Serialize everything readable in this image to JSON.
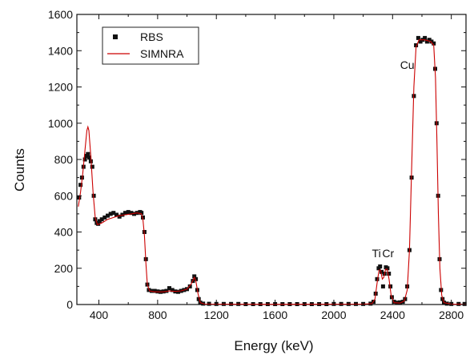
{
  "chart_data": {
    "type": "scatter",
    "xlabel": "Energy (keV)",
    "ylabel": "Counts",
    "xlim": [
      250,
      2900
    ],
    "ylim": [
      0,
      1600
    ],
    "xticks": [
      400,
      800,
      1200,
      1600,
      2000,
      2400,
      2800
    ],
    "xtick_labels": [
      "400",
      "800",
      "1200",
      "1600",
      "2000",
      "2400",
      "2800"
    ],
    "yticks": [
      0,
      200,
      400,
      600,
      800,
      1000,
      1200,
      1400,
      1600
    ],
    "ytick_labels": [
      "0",
      "200",
      "400",
      "600",
      "800",
      "1000",
      "1200",
      "1400",
      "1600"
    ],
    "grid": false,
    "legend_position": "top-left",
    "annotations": [
      {
        "text": "Cu",
        "x": 2500,
        "y": 1300
      },
      {
        "text": "Ti",
        "x": 2290,
        "y": 260
      },
      {
        "text": "Cr",
        "x": 2370,
        "y": 260
      }
    ],
    "series": [
      {
        "name": "RBS",
        "style": "square-markers",
        "color": "#111111",
        "points": [
          [
            265,
            590
          ],
          [
            275,
            660
          ],
          [
            285,
            700
          ],
          [
            295,
            760
          ],
          [
            305,
            800
          ],
          [
            315,
            820
          ],
          [
            325,
            830
          ],
          [
            335,
            810
          ],
          [
            345,
            790
          ],
          [
            355,
            760
          ],
          [
            365,
            600
          ],
          [
            375,
            470
          ],
          [
            385,
            450
          ],
          [
            395,
            445
          ],
          [
            405,
            460
          ],
          [
            420,
            470
          ],
          [
            440,
            480
          ],
          [
            460,
            490
          ],
          [
            480,
            500
          ],
          [
            500,
            505
          ],
          [
            520,
            495
          ],
          [
            540,
            485
          ],
          [
            560,
            495
          ],
          [
            580,
            505
          ],
          [
            600,
            510
          ],
          [
            620,
            505
          ],
          [
            640,
            500
          ],
          [
            660,
            505
          ],
          [
            680,
            510
          ],
          [
            690,
            505
          ],
          [
            700,
            480
          ],
          [
            710,
            400
          ],
          [
            720,
            250
          ],
          [
            730,
            110
          ],
          [
            740,
            80
          ],
          [
            760,
            75
          ],
          [
            780,
            75
          ],
          [
            800,
            72
          ],
          [
            820,
            70
          ],
          [
            840,
            72
          ],
          [
            860,
            75
          ],
          [
            880,
            90
          ],
          [
            900,
            80
          ],
          [
            920,
            72
          ],
          [
            940,
            70
          ],
          [
            960,
            75
          ],
          [
            980,
            80
          ],
          [
            1000,
            85
          ],
          [
            1020,
            100
          ],
          [
            1040,
            130
          ],
          [
            1050,
            155
          ],
          [
            1060,
            140
          ],
          [
            1070,
            80
          ],
          [
            1080,
            30
          ],
          [
            1090,
            10
          ],
          [
            1110,
            5
          ],
          [
            1150,
            4
          ],
          [
            1200,
            3
          ],
          [
            1250,
            3
          ],
          [
            1300,
            3
          ],
          [
            1350,
            3
          ],
          [
            1400,
            2
          ],
          [
            1450,
            2
          ],
          [
            1500,
            2
          ],
          [
            1550,
            2
          ],
          [
            1600,
            2
          ],
          [
            1650,
            2
          ],
          [
            1700,
            2
          ],
          [
            1750,
            2
          ],
          [
            1800,
            2
          ],
          [
            1850,
            2
          ],
          [
            1900,
            2
          ],
          [
            1950,
            2
          ],
          [
            2000,
            3
          ],
          [
            2050,
            3
          ],
          [
            2100,
            3
          ],
          [
            2150,
            3
          ],
          [
            2200,
            3
          ],
          [
            2250,
            5
          ],
          [
            2270,
            15
          ],
          [
            2285,
            60
          ],
          [
            2295,
            140
          ],
          [
            2305,
            200
          ],
          [
            2315,
            210
          ],
          [
            2325,
            180
          ],
          [
            2335,
            100
          ],
          [
            2345,
            170
          ],
          [
            2355,
            205
          ],
          [
            2365,
            200
          ],
          [
            2375,
            170
          ],
          [
            2385,
            100
          ],
          [
            2395,
            40
          ],
          [
            2410,
            15
          ],
          [
            2430,
            10
          ],
          [
            2450,
            12
          ],
          [
            2470,
            15
          ],
          [
            2485,
            30
          ],
          [
            2500,
            100
          ],
          [
            2515,
            300
          ],
          [
            2530,
            700
          ],
          [
            2545,
            1150
          ],
          [
            2560,
            1430
          ],
          [
            2575,
            1470
          ],
          [
            2590,
            1450
          ],
          [
            2605,
            1460
          ],
          [
            2620,
            1470
          ],
          [
            2635,
            1450
          ],
          [
            2650,
            1460
          ],
          [
            2665,
            1450
          ],
          [
            2680,
            1440
          ],
          [
            2690,
            1300
          ],
          [
            2700,
            1000
          ],
          [
            2710,
            600
          ],
          [
            2720,
            250
          ],
          [
            2730,
            80
          ],
          [
            2740,
            30
          ],
          [
            2750,
            10
          ],
          [
            2770,
            5
          ],
          [
            2800,
            3
          ],
          [
            2850,
            3
          ],
          [
            2890,
            3
          ]
        ]
      },
      {
        "name": "SIMNRA",
        "style": "line",
        "color": "#cc0000",
        "points": [
          [
            260,
            540
          ],
          [
            275,
            620
          ],
          [
            290,
            720
          ],
          [
            305,
            850
          ],
          [
            318,
            960
          ],
          [
            325,
            980
          ],
          [
            332,
            960
          ],
          [
            345,
            820
          ],
          [
            360,
            620
          ],
          [
            375,
            480
          ],
          [
            390,
            440
          ],
          [
            420,
            450
          ],
          [
            460,
            470
          ],
          [
            500,
            480
          ],
          [
            540,
            490
          ],
          [
            580,
            495
          ],
          [
            620,
            500
          ],
          [
            660,
            505
          ],
          [
            690,
            500
          ],
          [
            700,
            470
          ],
          [
            710,
            380
          ],
          [
            720,
            230
          ],
          [
            730,
            110
          ],
          [
            745,
            75
          ],
          [
            780,
            70
          ],
          [
            840,
            70
          ],
          [
            880,
            75
          ],
          [
            920,
            72
          ],
          [
            960,
            75
          ],
          [
            1000,
            85
          ],
          [
            1030,
            115
          ],
          [
            1050,
            150
          ],
          [
            1060,
            130
          ],
          [
            1075,
            60
          ],
          [
            1090,
            10
          ],
          [
            1120,
            2
          ],
          [
            1600,
            1
          ],
          [
            2200,
            2
          ],
          [
            2260,
            5
          ],
          [
            2280,
            30
          ],
          [
            2295,
            120
          ],
          [
            2308,
            190
          ],
          [
            2318,
            190
          ],
          [
            2330,
            140
          ],
          [
            2340,
            150
          ],
          [
            2352,
            195
          ],
          [
            2363,
            195
          ],
          [
            2376,
            140
          ],
          [
            2390,
            50
          ],
          [
            2410,
            10
          ],
          [
            2450,
            8
          ],
          [
            2480,
            20
          ],
          [
            2500,
            80
          ],
          [
            2515,
            300
          ],
          [
            2530,
            750
          ],
          [
            2545,
            1200
          ],
          [
            2560,
            1420
          ],
          [
            2580,
            1460
          ],
          [
            2620,
            1460
          ],
          [
            2660,
            1450
          ],
          [
            2680,
            1430
          ],
          [
            2692,
            1250
          ],
          [
            2702,
            900
          ],
          [
            2712,
            500
          ],
          [
            2722,
            200
          ],
          [
            2735,
            50
          ],
          [
            2750,
            10
          ],
          [
            2800,
            2
          ],
          [
            2900,
            1
          ]
        ]
      }
    ]
  }
}
